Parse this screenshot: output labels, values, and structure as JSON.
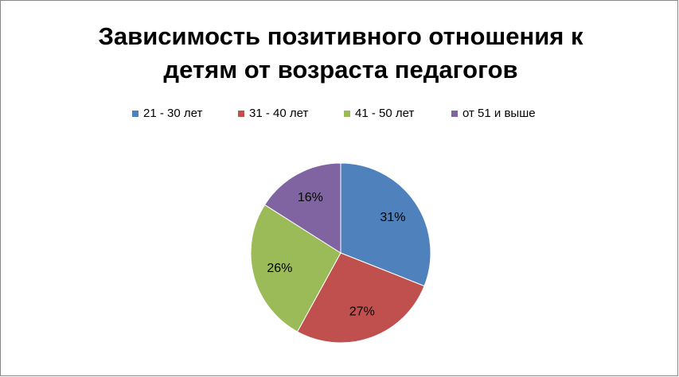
{
  "chart_data": {
    "type": "pie",
    "title": [
      "Зависимость позитивного отношения к",
      "детям от возраста педагогов"
    ],
    "categories": [
      "21 - 30 лет",
      "31 - 40 лет",
      "41 - 50 лет",
      "от 51 и выше"
    ],
    "values": [
      31,
      27,
      26,
      16
    ],
    "value_labels": [
      "31%",
      "27%",
      "26%",
      "16%"
    ],
    "colors": [
      "#4f81bd",
      "#c0504d",
      "#9bbb59",
      "#8064a2"
    ],
    "legend": "top"
  }
}
